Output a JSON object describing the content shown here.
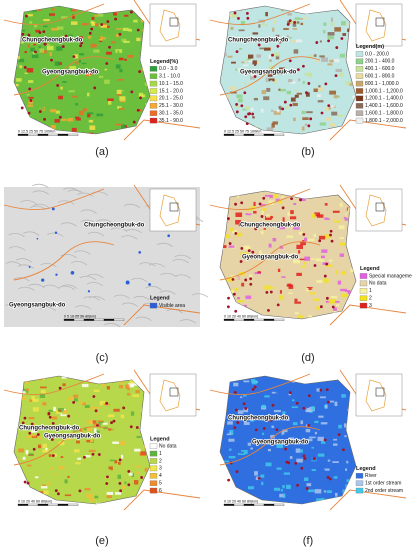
{
  "panels": [
    {
      "caption": "(a)",
      "regions": [
        "Chungcheongbuk-do",
        "Gyeongsangbuk-do"
      ],
      "scale": "0 12.5 25     50     75    100Km",
      "legend": {
        "title": "Legend(%)",
        "items": [
          {
            "label": "0.0 - 3.0",
            "color": "#2e9e3a"
          },
          {
            "label": "3.1 - 10.0",
            "color": "#6cbf3c"
          },
          {
            "label": "10.1 - 15.0",
            "color": "#a8d84a"
          },
          {
            "label": "15.1 - 20.0",
            "color": "#d6ea4c"
          },
          {
            "label": "20.1 - 25.0",
            "color": "#f7e04a"
          },
          {
            "label": "25.1 - 30.0",
            "color": "#f5a833"
          },
          {
            "label": "30.1 - 35.0",
            "color": "#ef6a2a"
          },
          {
            "label": "35.1 - 90.0",
            "color": "#e0201c"
          }
        ]
      }
    },
    {
      "caption": "(b)",
      "regions": [
        "Chungcheongbuk-do",
        "Gyeongsangbuk-do"
      ],
      "scale": "0 12.5 25     50     75    100Km",
      "legend": {
        "title": "Legend(m)",
        "items": [
          {
            "label": "0.0 - 200.0",
            "color": "#bfe6e2"
          },
          {
            "label": "200.1 - 400.0",
            "color": "#8fd18a"
          },
          {
            "label": "400.1 - 600.0",
            "color": "#c9e29a"
          },
          {
            "label": "600.1 - 800.0",
            "color": "#e9dba0"
          },
          {
            "label": "800.1 - 1,000.0",
            "color": "#c9a66b"
          },
          {
            "label": "1,000.1 - 1,200.0",
            "color": "#9c5a2c"
          },
          {
            "label": "1,200.1 - 1,400.0",
            "color": "#7a3518"
          },
          {
            "label": "1,400.1 - 1,600.0",
            "color": "#8a6a5a"
          },
          {
            "label": "1,600.1 - 1,800.0",
            "color": "#b8b0aa"
          },
          {
            "label": "1,800.1 - 2,000.0",
            "color": "#efefef"
          }
        ]
      }
    },
    {
      "caption": "(c)",
      "regions": [
        "Chungcheongbuk-do",
        "Gyeongsangbuk-do"
      ],
      "scale": "0  5  10    20    30    40(km)",
      "legend": {
        "title": "Legend",
        "items": [
          {
            "label": "Visible area",
            "color": "#2b5fd9"
          }
        ]
      }
    },
    {
      "caption": "(d)",
      "regions": [
        "Chungcheongbuk-do",
        "Gyeongsangbuk-do"
      ],
      "scale": "0 10 20    40    60    80(km)",
      "legend": {
        "title": "Legend",
        "items": [
          {
            "label": "Special management area",
            "color": "#e060e0"
          },
          {
            "label": "No data",
            "color": "#e6d3a6"
          },
          {
            "label": "1",
            "color": "#f6f2a0"
          },
          {
            "label": "2",
            "color": "#f2e21c"
          },
          {
            "label": "3",
            "color": "#e0201c"
          }
        ]
      }
    },
    {
      "caption": "(e)",
      "regions": [
        "Chungcheongbuk-do",
        "Gyeongsangbuk-do"
      ],
      "scale": "0 10 20    40    60    80(km)",
      "legend": {
        "title": "Legend",
        "items": [
          {
            "label": "No data",
            "color": "#ffffff"
          },
          {
            "label": "1",
            "color": "#5fb33c"
          },
          {
            "label": "2",
            "color": "#b6d84a"
          },
          {
            "label": "3",
            "color": "#eee64a"
          },
          {
            "label": "4",
            "color": "#f3c038"
          },
          {
            "label": "5",
            "color": "#ef8a2e"
          },
          {
            "label": "6",
            "color": "#e0501c"
          }
        ]
      }
    },
    {
      "caption": "(f)",
      "regions": [
        "Chungcheongbuk-do",
        "Gyeongsangbuk-do"
      ],
      "scale": "0 10 20    40    60    80(km)",
      "legend": {
        "title": "Legend",
        "items": [
          {
            "label": "River",
            "color": "#2f6fe0"
          },
          {
            "label": "1st order stream",
            "color": "#a9c6ee"
          },
          {
            "label": "2nd order stream",
            "color": "#3fc8e8"
          }
        ]
      }
    }
  ]
}
